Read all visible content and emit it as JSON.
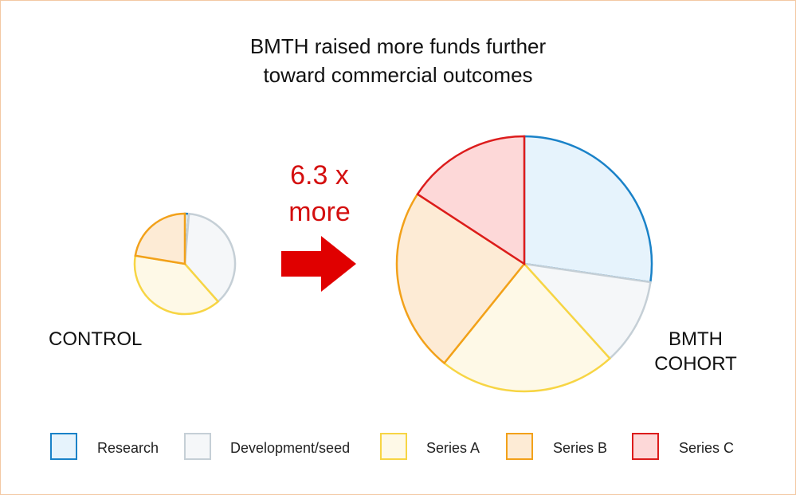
{
  "title_line1": "BMTH raised more funds further",
  "title_line2": "toward commercial outcomes",
  "multiplier_line1": "6.3 x",
  "multiplier_line2": "more",
  "arrow_color": "#e00000",
  "chart_data": [
    {
      "type": "pie",
      "title": "CONTROL",
      "categories": [
        "Research",
        "Development/seed",
        "Series A",
        "Series B",
        "Series C"
      ],
      "values": [
        1.3,
        37.2,
        39.1,
        22.4,
        0
      ],
      "unit": "percent"
    },
    {
      "type": "pie",
      "title": "BMTH\nCOHORT",
      "categories": [
        "Research",
        "Development/seed",
        "Series A",
        "Series B",
        "Series C"
      ],
      "values": [
        27.3,
        11.0,
        22.5,
        23.4,
        15.8
      ],
      "unit": "percent",
      "relative_total_vs_control": 6.3
    }
  ],
  "labels": {
    "control": "CONTROL",
    "bmth_line1": "BMTH",
    "bmth_line2": "COHORT"
  },
  "legend": [
    {
      "label": "Research",
      "stroke": "#1a82c8",
      "fill": "#e6f3fc"
    },
    {
      "label": "Development/seed",
      "stroke": "#c5cfd6",
      "fill": "#f5f7f9"
    },
    {
      "label": "Series A",
      "stroke": "#f7d544",
      "fill": "#fef9e7"
    },
    {
      "label": "Series B",
      "stroke": "#f2a11a",
      "fill": "#fdebd5"
    },
    {
      "label": "Series C",
      "stroke": "#dc1c1c",
      "fill": "#fdd8d8"
    }
  ]
}
